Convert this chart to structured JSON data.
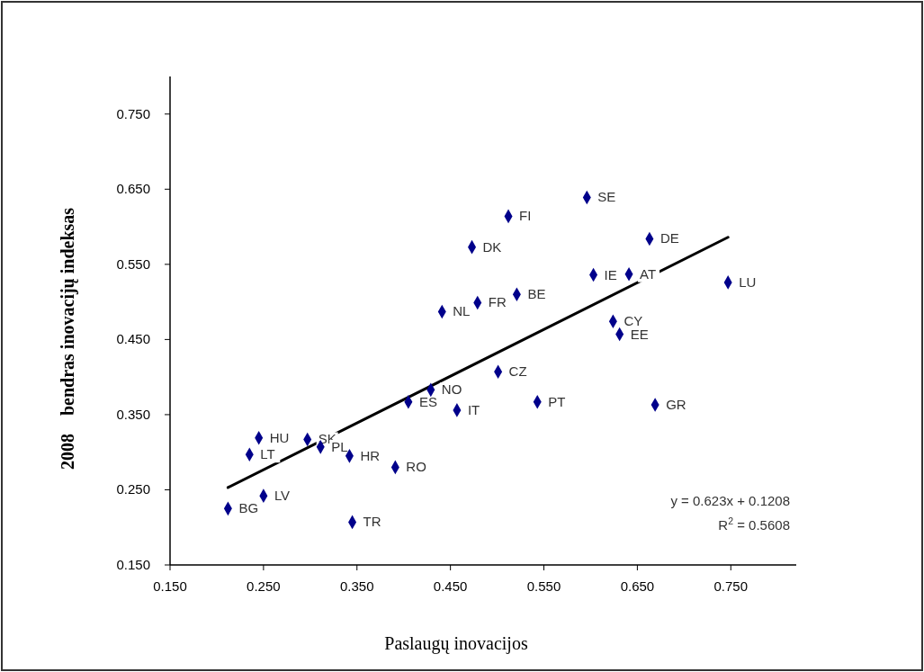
{
  "chart_data": {
    "type": "scatter",
    "xlabel": "Paslaugų inovacijos",
    "ylabel": "2008    bendras inovacijų indeksas",
    "xlim": [
      0.15,
      0.82
    ],
    "ylim": [
      0.15,
      0.8
    ],
    "xticks": [
      {
        "value": 0.15,
        "label": "0.150"
      },
      {
        "value": 0.25,
        "label": "0.250"
      },
      {
        "value": 0.35,
        "label": "0.350"
      },
      {
        "value": 0.45,
        "label": "0.450"
      },
      {
        "value": 0.55,
        "label": "0.550"
      },
      {
        "value": 0.65,
        "label": "0.650"
      },
      {
        "value": 0.75,
        "label": "0.750"
      }
    ],
    "yticks": [
      {
        "value": 0.15,
        "label": "0.150"
      },
      {
        "value": 0.25,
        "label": "0.250"
      },
      {
        "value": 0.35,
        "label": "0.350"
      },
      {
        "value": 0.45,
        "label": "0.450"
      },
      {
        "value": 0.55,
        "label": "0.550"
      },
      {
        "value": 0.65,
        "label": "0.650"
      },
      {
        "value": 0.75,
        "label": "0.750"
      }
    ],
    "grid": false,
    "series": [
      {
        "marker": "diamond",
        "color": "#00008b",
        "x": [
          0.212,
          0.25,
          0.235,
          0.245,
          0.297,
          0.311,
          0.342,
          0.391,
          0.345,
          0.405,
          0.429,
          0.457,
          0.501,
          0.543,
          0.669,
          0.441,
          0.479,
          0.521,
          0.473,
          0.512,
          0.596,
          0.663,
          0.603,
          0.641,
          0.747,
          0.624,
          0.631
        ],
        "values": [
          0.225,
          0.242,
          0.297,
          0.319,
          0.317,
          0.307,
          0.295,
          0.28,
          0.207,
          0.367,
          0.383,
          0.356,
          0.407,
          0.367,
          0.363,
          0.487,
          0.499,
          0.51,
          0.573,
          0.614,
          0.639,
          0.584,
          0.536,
          0.537,
          0.526,
          0.474,
          0.457
        ]
      },
      {
        "type": "line",
        "color": "#000000",
        "x": [
          0.212,
          0.747
        ],
        "values": [
          0.253,
          0.586
        ]
      }
    ],
    "annotations": [
      {
        "text": "BG",
        "x": 0.212,
        "y": 0.225
      },
      {
        "text": "LV",
        "x": 0.25,
        "y": 0.242
      },
      {
        "text": "LT",
        "x": 0.235,
        "y": 0.297
      },
      {
        "text": "HU",
        "x": 0.245,
        "y": 0.319
      },
      {
        "text": "SK",
        "x": 0.297,
        "y": 0.317
      },
      {
        "text": "PL",
        "x": 0.311,
        "y": 0.307
      },
      {
        "text": "HR",
        "x": 0.342,
        "y": 0.295
      },
      {
        "text": "RO",
        "x": 0.391,
        "y": 0.28
      },
      {
        "text": "TR",
        "x": 0.345,
        "y": 0.207
      },
      {
        "text": "ES",
        "x": 0.405,
        "y": 0.367
      },
      {
        "text": "NO",
        "x": 0.429,
        "y": 0.383
      },
      {
        "text": "IT",
        "x": 0.457,
        "y": 0.356
      },
      {
        "text": "CZ",
        "x": 0.501,
        "y": 0.407
      },
      {
        "text": "PT",
        "x": 0.543,
        "y": 0.367
      },
      {
        "text": "GR",
        "x": 0.669,
        "y": 0.363
      },
      {
        "text": "NL",
        "x": 0.441,
        "y": 0.487
      },
      {
        "text": "FR",
        "x": 0.479,
        "y": 0.499
      },
      {
        "text": "BE",
        "x": 0.521,
        "y": 0.51
      },
      {
        "text": "DK",
        "x": 0.473,
        "y": 0.573
      },
      {
        "text": "FI",
        "x": 0.512,
        "y": 0.614
      },
      {
        "text": "SE",
        "x": 0.596,
        "y": 0.639
      },
      {
        "text": "DE",
        "x": 0.663,
        "y": 0.584
      },
      {
        "text": "IE",
        "x": 0.603,
        "y": 0.536
      },
      {
        "text": "AT",
        "x": 0.641,
        "y": 0.537
      },
      {
        "text": "LU",
        "x": 0.747,
        "y": 0.526
      },
      {
        "text": "CY",
        "x": 0.624,
        "y": 0.474
      },
      {
        "text": "EE",
        "x": 0.631,
        "y": 0.457
      },
      "y = 0.623x + 0.1208",
      "R$^{2}$ = 0.5608"
    ]
  }
}
